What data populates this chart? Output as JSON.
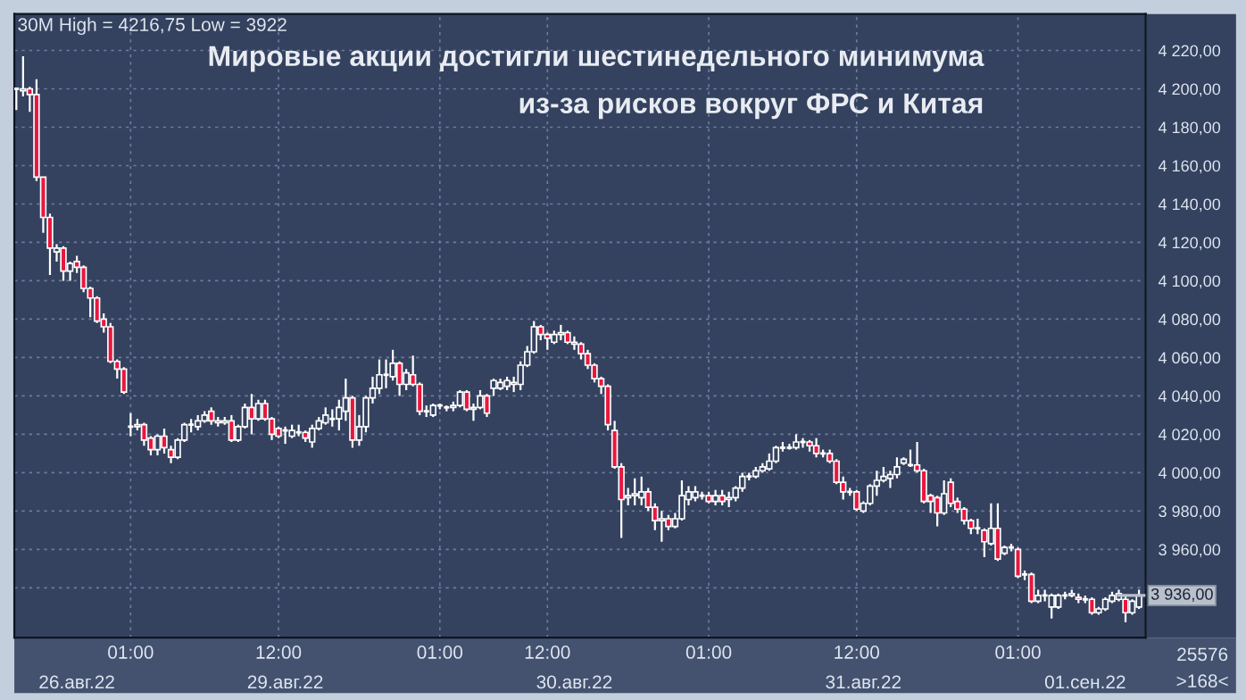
{
  "chart_data": {
    "type": "candlestick",
    "title": "Мировые акции достигли шестинедельного минимума\nиз-за рисков вокруг ФРС и Китая",
    "annotations": [
      "30M High = 4216,75 Low = 3922",
      "25576",
      ">168<"
    ],
    "categories": [
      null,
      null,
      null,
      null,
      null,
      null,
      null,
      null,
      null,
      "26.авг.22",
      null,
      null,
      null,
      null,
      null,
      null,
      null,
      "01:00",
      null,
      null,
      null,
      null,
      null,
      null,
      null,
      null,
      null,
      null,
      null,
      null,
      null,
      null,
      null,
      null,
      null,
      null,
      null,
      null,
      null,
      "12:00",
      "29.авг.22",
      null,
      null,
      null,
      null,
      null,
      null,
      null,
      null,
      null,
      null,
      null,
      null,
      null,
      null,
      null,
      null,
      null,
      null,
      null,
      null,
      null,
      null,
      "01:00",
      null,
      null,
      null,
      null,
      null,
      null,
      null,
      null,
      null,
      null,
      null,
      null,
      null,
      null,
      null,
      "12:00",
      null,
      null,
      null,
      "30.авг.22",
      null,
      null,
      null,
      null,
      null,
      null,
      null,
      null,
      null,
      null,
      null,
      null,
      null,
      null,
      null,
      null,
      null,
      null,
      null,
      "01:00",
      null,
      null,
      null,
      null,
      null,
      null,
      null,
      null,
      null,
      null,
      null,
      null,
      null,
      null,
      null,
      null,
      null,
      null,
      null,
      null,
      null,
      "12:00",
      "31.авг.22",
      null,
      null,
      null,
      null,
      null,
      null,
      null,
      null,
      null,
      null,
      null,
      null,
      null,
      null,
      null,
      null,
      null,
      null,
      null,
      null,
      null,
      null,
      "01:00",
      null,
      null,
      null,
      null,
      null,
      null,
      null,
      null,
      null,
      "01.сен.22",
      null,
      null,
      null,
      null,
      null,
      null,
      null,
      null
    ],
    "ohlc": [
      [
        4200,
        4200,
        4189,
        4200
      ],
      [
        4199,
        4217,
        4196,
        4200
      ],
      [
        4200,
        4201,
        4188,
        4197
      ],
      [
        4197,
        4205,
        4152,
        4154
      ],
      [
        4154,
        4154,
        4125,
        4133
      ],
      [
        4133,
        4135,
        4103,
        4117
      ],
      [
        4115,
        4119,
        4110,
        4117
      ],
      [
        4117,
        4118,
        4100,
        4105
      ],
      [
        4105,
        4110,
        4100,
        4109
      ],
      [
        4110,
        4113,
        4104,
        4107
      ],
      [
        4107,
        4108,
        4094,
        4096
      ],
      [
        4096,
        4097,
        4081,
        4091
      ],
      [
        4091,
        4092,
        4078,
        4079
      ],
      [
        4080,
        4083,
        4073,
        4076
      ],
      [
        4076,
        4078,
        4057,
        4058
      ],
      [
        4058,
        4059,
        4049,
        4054
      ],
      [
        4054,
        4055,
        4041,
        4042
      ],
      [
        4024,
        4031,
        4019,
        4024
      ],
      [
        4025,
        4028,
        4022,
        4024
      ],
      [
        4025,
        4026,
        4014,
        4017
      ],
      [
        4018,
        4019,
        4009,
        4012
      ],
      [
        4012,
        4020,
        4009,
        4019
      ],
      [
        4019,
        4023,
        4010,
        4013
      ],
      [
        4012,
        4014,
        4005,
        4008
      ],
      [
        4008,
        4018,
        4007,
        4017
      ],
      [
        4017,
        4026,
        4016,
        4025
      ],
      [
        4025,
        4028,
        4021,
        4025
      ],
      [
        4024,
        4030,
        4022,
        4027
      ],
      [
        4027,
        4032,
        4026,
        4030
      ],
      [
        4032,
        4034,
        4025,
        4027
      ],
      [
        4027,
        4029,
        4024,
        4026
      ],
      [
        4026,
        4029,
        4025,
        4027
      ],
      [
        4027,
        4030,
        4016,
        4017
      ],
      [
        4017,
        4025,
        4016,
        4024
      ],
      [
        4024,
        4036,
        4023,
        4034
      ],
      [
        4034,
        4041,
        4020,
        4028
      ],
      [
        4028,
        4038,
        4027,
        4036
      ],
      [
        4036,
        4038,
        4027,
        4028
      ],
      [
        4028,
        4029,
        4017,
        4020
      ],
      [
        4023,
        4024,
        4018,
        4019
      ],
      [
        4022,
        4024,
        4015,
        4022
      ],
      [
        4019,
        4025,
        4018,
        4022
      ],
      [
        4021,
        4025,
        4019,
        4021
      ],
      [
        4021,
        4022,
        4016,
        4018
      ],
      [
        4016,
        4025,
        4013,
        4023
      ],
      [
        4023,
        4029,
        4022,
        4027
      ],
      [
        4026,
        4034,
        4025,
        4030
      ],
      [
        4028,
        4033,
        4024,
        4028
      ],
      [
        4028,
        4038,
        4022,
        4034
      ],
      [
        4032,
        4049,
        4027,
        4039
      ],
      [
        4039,
        4040,
        4013,
        4017
      ],
      [
        4017,
        4030,
        4014,
        4024
      ],
      [
        4024,
        4040,
        4021,
        4039
      ],
      [
        4039,
        4050,
        4036,
        4044
      ],
      [
        4044,
        4059,
        4041,
        4051
      ],
      [
        4051,
        4059,
        4044,
        4051
      ],
      [
        4050,
        4064,
        4048,
        4057
      ],
      [
        4057,
        4058,
        4040,
        4046
      ],
      [
        4046,
        4054,
        4043,
        4052
      ],
      [
        4051,
        4061,
        4045,
        4046
      ],
      [
        4046,
        4047,
        4030,
        4032
      ],
      [
        4032,
        4035,
        4029,
        4032
      ],
      [
        4030,
        4036,
        4029,
        4035
      ],
      [
        4035,
        4036,
        4033,
        4035
      ],
      [
        4034,
        4035,
        4032,
        4034
      ],
      [
        4034,
        4037,
        4032,
        4035
      ],
      [
        4035,
        4043,
        4034,
        4042
      ],
      [
        4042,
        4043,
        4032,
        4033
      ],
      [
        4033,
        4036,
        4027,
        4034
      ],
      [
        4034,
        4043,
        4033,
        4040
      ],
      [
        4040,
        4041,
        4029,
        4031
      ],
      [
        4044,
        4049,
        4040,
        4048
      ],
      [
        4044,
        4049,
        4043,
        4047
      ],
      [
        4045,
        4050,
        4043,
        4048
      ],
      [
        4046,
        4050,
        4042,
        4047
      ],
      [
        4046,
        4058,
        4043,
        4056
      ],
      [
        4056,
        4066,
        4055,
        4063
      ],
      [
        4063,
        4079,
        4062,
        4076
      ],
      [
        4076,
        4077,
        4069,
        4072
      ],
      [
        4072,
        4073,
        4064,
        4070
      ],
      [
        4068,
        4074,
        4067,
        4072
      ],
      [
        4072,
        4077,
        4069,
        4073
      ],
      [
        4073,
        4074,
        4067,
        4068
      ],
      [
        4068,
        4071,
        4064,
        4067
      ],
      [
        4067,
        4068,
        4059,
        4062
      ],
      [
        4062,
        4064,
        4054,
        4056
      ],
      [
        4056,
        4057,
        4047,
        4049
      ],
      [
        4049,
        4050,
        4041,
        4045
      ],
      [
        4045,
        4046,
        4022,
        4025
      ],
      [
        4022,
        4027,
        4002,
        4003
      ],
      [
        4003,
        4005,
        3966,
        3986
      ],
      [
        3987,
        3992,
        3983,
        3988
      ],
      [
        3988,
        3997,
        3983,
        3989
      ],
      [
        3987,
        3998,
        3983,
        3990
      ],
      [
        3990,
        3992,
        3980,
        3982
      ],
      [
        3982,
        3984,
        3970,
        3975
      ],
      [
        3975,
        3980,
        3964,
        3976
      ],
      [
        3976,
        3978,
        3970,
        3972
      ],
      [
        3972,
        3979,
        3971,
        3976
      ],
      [
        3976,
        3996,
        3975,
        3988
      ],
      [
        3986,
        3993,
        3983,
        3990
      ],
      [
        3987,
        3993,
        3985,
        3990
      ],
      [
        3988,
        3990,
        3986,
        3988
      ],
      [
        3988,
        3990,
        3984,
        3985
      ],
      [
        3985,
        3991,
        3983,
        3988
      ],
      [
        3988,
        3991,
        3983,
        3985
      ],
      [
        3986,
        3990,
        3982,
        3987
      ],
      [
        3987,
        3993,
        3985,
        3992
      ],
      [
        3992,
        4000,
        3990,
        3998
      ],
      [
        3998,
        4000,
        3996,
        3998
      ],
      [
        3998,
        4003,
        3997,
        4001
      ],
      [
        4001,
        4005,
        4000,
        4003
      ],
      [
        4002,
        4010,
        4001,
        4006
      ],
      [
        4006,
        4014,
        4005,
        4013
      ],
      [
        4013,
        4016,
        4011,
        4013
      ],
      [
        4013,
        4015,
        4012,
        4013
      ],
      [
        4013,
        4020,
        4012,
        4016
      ],
      [
        4016,
        4018,
        4013,
        4016
      ],
      [
        4016,
        4017,
        4011,
        4014
      ],
      [
        4014,
        4018,
        4008,
        4010
      ],
      [
        4010,
        4012,
        4008,
        4010
      ],
      [
        4010,
        4012,
        4005,
        4006
      ],
      [
        4006,
        4007,
        3994,
        3995
      ],
      [
        3995,
        3998,
        3986,
        3990
      ],
      [
        3990,
        3992,
        3988,
        3990
      ],
      [
        3990,
        3991,
        3980,
        3981
      ],
      [
        3980,
        3985,
        3979,
        3984
      ],
      [
        3984,
        3994,
        3983,
        3993
      ],
      [
        3993,
        4001,
        3988,
        3996
      ],
      [
        3996,
        4003,
        3995,
        3998
      ],
      [
        3997,
        4001,
        3992,
        3999
      ],
      [
        3999,
        4008,
        3997,
        4003
      ],
      [
        4005,
        4008,
        4004,
        4007
      ],
      [
        4004,
        4012,
        4003,
        4004
      ],
      [
        4004,
        4016,
        4000,
        4001
      ],
      [
        4001,
        4002,
        3984,
        3985
      ],
      [
        3988,
        3989,
        3979,
        3985
      ],
      [
        3987,
        3988,
        3972,
        3979
      ],
      [
        3979,
        3996,
        3978,
        3989
      ],
      [
        3995,
        3997,
        3982,
        3984
      ],
      [
        3985,
        3987,
        3979,
        3981
      ],
      [
        3981,
        3982,
        3973,
        3975
      ],
      [
        3975,
        3976,
        3968,
        3971
      ],
      [
        3971,
        3976,
        3968,
        3971
      ],
      [
        3970,
        3971,
        3956,
        3964
      ],
      [
        3963,
        3984,
        3962,
        3971
      ],
      [
        3971,
        3984,
        3954,
        3955
      ],
      [
        3958,
        3962,
        3957,
        3961
      ],
      [
        3961,
        3963,
        3959,
        3961
      ],
      [
        3960,
        3961,
        3945,
        3946
      ],
      [
        3947,
        3949,
        3944,
        3947
      ],
      [
        3947,
        3948,
        3932,
        3933
      ],
      [
        3933,
        3939,
        3932,
        3936
      ],
      [
        3936,
        3939,
        3933,
        3936
      ],
      [
        3930,
        3937,
        3924,
        3936
      ],
      [
        3930,
        3937,
        3929,
        3936
      ],
      [
        3936,
        3938,
        3934,
        3936
      ],
      [
        3936,
        3939,
        3935,
        3937
      ],
      [
        3935,
        3937,
        3932,
        3934
      ],
      [
        3934,
        3936,
        3932,
        3934
      ],
      [
        3934,
        3935,
        3926,
        3927
      ],
      [
        3927,
        3930,
        3926,
        3929
      ],
      [
        3929,
        3935,
        3928,
        3934
      ],
      [
        3933,
        3938,
        3932,
        3936
      ],
      [
        3934,
        3939,
        3933,
        3937
      ],
      [
        3934,
        3936,
        3922,
        3927
      ],
      [
        3927,
        3934,
        3926,
        3933
      ],
      [
        3930,
        3939,
        3929,
        3936
      ]
    ],
    "ylim": [
      3914,
      4239
    ],
    "yticks": [
      {
        "value": 3940,
        "label": null
      },
      {
        "value": 3960,
        "label": "3 960,00"
      },
      {
        "value": 3980,
        "label": "3 980,00"
      },
      {
        "value": 4000,
        "label": "4 000,00"
      },
      {
        "value": 4020,
        "label": "4 020,00"
      },
      {
        "value": 4040,
        "label": "4 040,00"
      },
      {
        "value": 4060,
        "label": "4 060,00"
      },
      {
        "value": 4080,
        "label": "4 080,00"
      },
      {
        "value": 4100,
        "label": "4 100,00"
      },
      {
        "value": 4120,
        "label": "4 120,00"
      },
      {
        "value": 4140,
        "label": "4 140,00"
      },
      {
        "value": 4160,
        "label": "4 160,00"
      },
      {
        "value": 4180,
        "label": "4 180,00"
      },
      {
        "value": 4200,
        "label": "4 200,00"
      },
      {
        "value": 4220,
        "label": "4 220,00"
      }
    ],
    "ref_lines": [
      {
        "axis": "y",
        "value": 3936,
        "label": "3 936,00"
      }
    ],
    "grid": true
  }
}
